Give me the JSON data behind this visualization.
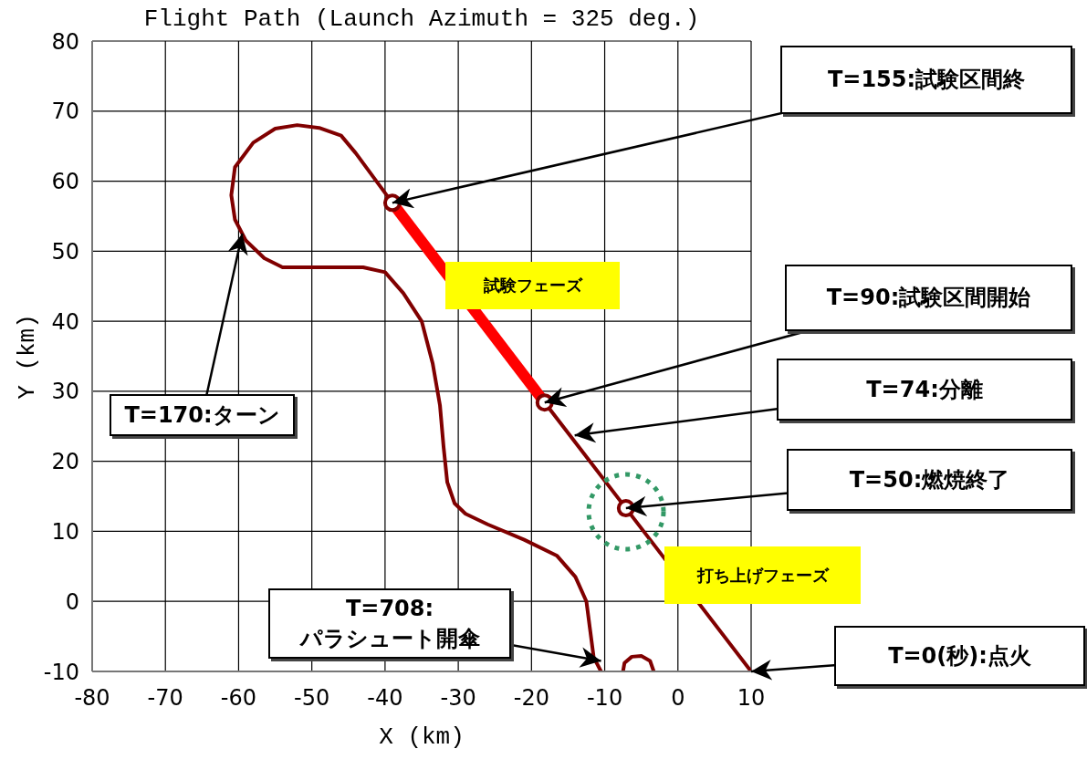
{
  "chart_data": {
    "type": "line",
    "title": "Flight Path (Launch Azimuth = 325 deg.)",
    "xlabel": "X (km)",
    "ylabel": "Y (km)",
    "xlim": [
      -80,
      10
    ],
    "xticks": [
      -80,
      -70,
      -60,
      -50,
      -40,
      -30,
      -20,
      -10,
      0,
      10
    ],
    "ylim": [
      -10,
      80
    ],
    "yticks": [
      -10,
      0,
      10,
      20,
      30,
      40,
      50,
      60,
      70,
      80
    ],
    "grid": true,
    "series": [
      {
        "type": "line",
        "color": "#800000",
        "line_style": "solid",
        "x": [
          10,
          -7.1,
          -18.2,
          -39,
          -44,
          -46,
          -49,
          -52,
          -55,
          -58,
          -60.5,
          -61,
          -60.5,
          -59,
          -56.5,
          -54,
          -43,
          -40,
          -37.5,
          -35,
          -33.5,
          -32.5,
          -32,
          -31.5,
          -30.5,
          -29,
          -26,
          -21,
          -16.5,
          -14,
          -12.5,
          -12,
          -11.5,
          -10.5,
          null,
          -7.5,
          -7.3,
          -6.3,
          -5,
          -3.8,
          -3.3
        ],
        "values": [
          -10,
          13.3,
          28.4,
          56.9,
          64,
          66.5,
          67.6,
          68,
          67.5,
          65.5,
          62,
          58,
          54.5,
          51.5,
          49,
          47.7,
          47.7,
          47,
          44,
          40,
          34,
          28,
          22,
          17,
          14,
          12.5,
          11,
          8.8,
          6.5,
          3.5,
          0,
          -4,
          -8,
          -10,
          null,
          -10,
          -8.8,
          -7.9,
          -7.8,
          -8.5,
          -10
        ]
      },
      {
        "type": "line",
        "color": "#ff0000",
        "line_style": "solid",
        "x": [
          -18.2,
          -39
        ],
        "values": [
          28.4,
          56.9
        ]
      },
      {
        "type": "scatter",
        "color": "#800000",
        "marker": "circle",
        "x": [
          -39,
          -18.2,
          -7.1
        ],
        "values": [
          56.9,
          28.4,
          13.3
        ]
      }
    ],
    "annotations": [
      {
        "text": "T=155:試験区間終",
        "x": -39,
        "y": 56.9
      },
      {
        "text": "T=90:試験区間開始",
        "x": -18.2,
        "y": 28.4
      },
      {
        "text": "T=74:分離",
        "x": -14.1,
        "y": 23.7
      },
      {
        "text": "T=50:燃焼終了",
        "x": -7.1,
        "y": 13.3
      },
      {
        "text": "T=0(秒):点火",
        "x": 10,
        "y": -10
      },
      {
        "text": "T=708:\nパラシュート開傘",
        "x": -10.5,
        "y": -8.5
      },
      {
        "text": "T=170:ターン",
        "x": -59.5,
        "y": 52.5
      },
      "試験フェーズ",
      "打ち上げフェーズ"
    ]
  }
}
